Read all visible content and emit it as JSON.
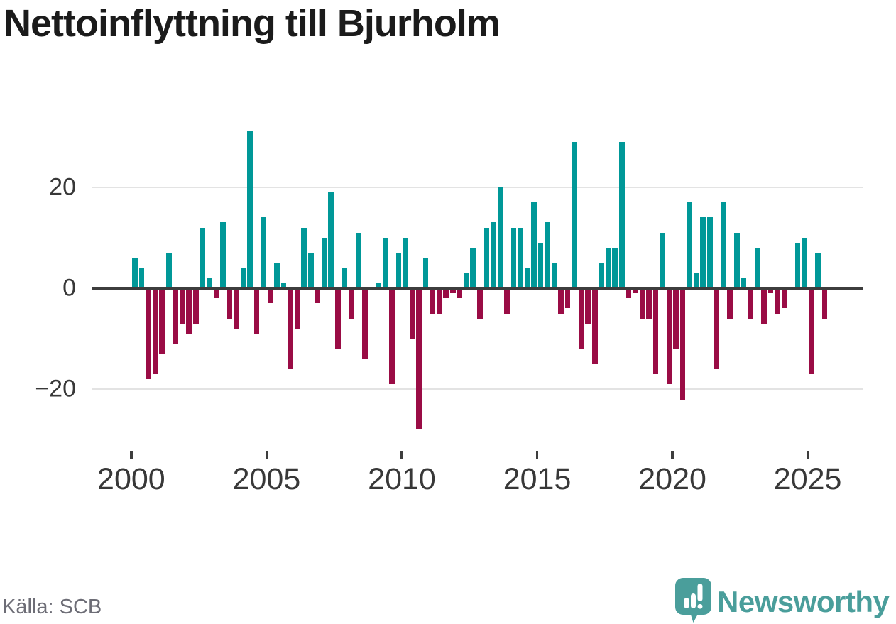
{
  "title": "Nettoinflyttning till Bjurholm",
  "source": "Källa: SCB",
  "branding": {
    "name": "Newsworthy",
    "color": "#4a9e9b"
  },
  "chart_data": {
    "type": "bar",
    "title": "Nettoinflyttning till Bjurholm",
    "frequency": "quarterly",
    "first_period": "2000 Q1",
    "last_period": "2025 Q3",
    "values": [
      6,
      4,
      -18,
      -17,
      -13,
      7,
      -11,
      -7,
      -9,
      -7,
      12,
      2,
      -2,
      13,
      -6,
      -8,
      4,
      31,
      -9,
      14,
      -3,
      5,
      1,
      -16,
      -8,
      12,
      7,
      -3,
      10,
      19,
      -12,
      4,
      -6,
      11,
      -14,
      0,
      1,
      10,
      -19,
      7,
      10,
      -10,
      -28,
      6,
      -5,
      -5,
      -2,
      -1,
      -2,
      3,
      8,
      -6,
      12,
      13,
      20,
      -5,
      12,
      12,
      4,
      17,
      9,
      13,
      5,
      -5,
      -4,
      29,
      -12,
      -7,
      -15,
      5,
      8,
      8,
      29,
      -2,
      -1,
      -6,
      -6,
      -17,
      11,
      -19,
      -12,
      -22,
      17,
      3,
      14,
      14,
      -16,
      17,
      -6,
      11,
      2,
      -6,
      8,
      -7,
      -1,
      -5,
      -4,
      0,
      9,
      10,
      -17,
      7,
      -6
    ],
    "xticks": [
      2000,
      2005,
      2010,
      2015,
      2020,
      2025
    ],
    "yticks": [
      20,
      0,
      -20
    ],
    "ylim": [
      -30,
      33
    ],
    "grid": "horizontal-light",
    "positive_color": "#009898",
    "negative_color": "#9a0c45",
    "axis_color": "#3d3d3d",
    "legend": "none"
  }
}
